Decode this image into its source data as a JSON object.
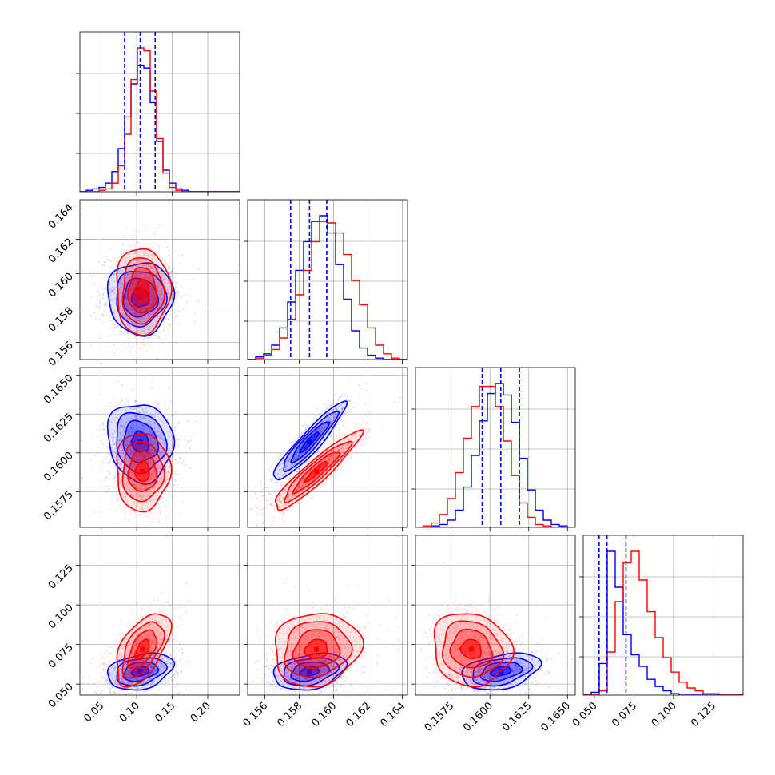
{
  "chart_data": {
    "type": "corner",
    "title": "",
    "colors": {
      "series_a": "#0000ff",
      "series_b": "#ff0000"
    },
    "grid": true,
    "legend": "none",
    "params": [
      {
        "ticks": [
          0.05,
          0.1,
          0.15,
          0.2
        ],
        "tick_labels": [
          "0.05",
          "0.10",
          "0.15",
          "0.20"
        ],
        "range": [
          0.02,
          0.245
        ]
      },
      {
        "ticks": [
          0.156,
          0.158,
          0.16,
          0.162,
          0.164
        ],
        "tick_labels": [
          "0.156",
          "0.158",
          "0.160",
          "0.162",
          "0.164"
        ],
        "range": [
          0.155,
          0.1643
        ]
      },
      {
        "ticks": [
          0.1575,
          0.16,
          0.1625,
          0.165
        ],
        "tick_labels": [
          "0.1575",
          "0.1600",
          "0.1625",
          "0.1650"
        ],
        "range": [
          0.1552,
          0.1655
        ]
      },
      {
        "ticks": [
          0.05,
          0.075,
          0.1,
          0.125
        ],
        "tick_labels": [
          "0.050",
          "0.075",
          "0.100",
          "0.125"
        ],
        "range": [
          0.043,
          0.144
        ]
      }
    ],
    "series": [
      {
        "color_key": "series_a",
        "means": [
          0.105,
          0.1586,
          0.1607,
          0.058
        ],
        "sds": [
          0.022,
          0.001,
          0.0012,
          0.0055
        ],
        "quantiles": [
          [
            0.083,
            0.105,
            0.126
          ],
          [
            0.1575,
            0.1586,
            0.1596
          ],
          [
            0.1595,
            0.1607,
            0.1619
          ],
          [
            0.053,
            0.058,
            0.07
          ]
        ],
        "corr": {
          "0-1": 0.0,
          "0-2": -0.1,
          "1-2": 0.93,
          "0-3": 0.3,
          "1-3": 0.3,
          "2-3": 0.35
        }
      },
      {
        "color_key": "series_b",
        "means": [
          0.108,
          0.159,
          0.1588,
          0.072
        ],
        "sds": [
          0.018,
          0.0012,
          0.0012,
          0.011
        ],
        "quantiles": null,
        "corr": {
          "0-1": 0.0,
          "0-2": 0.0,
          "1-2": 0.93,
          "0-3": 0.55,
          "1-3": 0.1,
          "2-3": -0.1
        }
      }
    ],
    "hist": {
      "0": {
        "edges": [
          0.02,
          0.245
        ],
        "series_a": [
          0,
          1,
          2,
          3,
          6,
          14,
          30,
          52,
          75,
          88,
          86,
          62,
          35,
          15,
          6,
          2,
          1,
          0,
          0,
          0,
          0,
          0,
          0,
          0,
          0
        ],
        "series_b": [
          0,
          0,
          0,
          1,
          2,
          6,
          18,
          40,
          78,
          100,
          98,
          70,
          37,
          13,
          3,
          1,
          0,
          0,
          0,
          0,
          0,
          0,
          0,
          0,
          0
        ]
      },
      "1": {
        "edges": [
          0.155,
          0.1643
        ],
        "series_a": [
          0,
          2,
          4,
          10,
          22,
          40,
          62,
          82,
          96,
          100,
          88,
          66,
          42,
          20,
          8,
          3,
          1,
          0,
          0,
          0
        ],
        "series_b": [
          0,
          1,
          3,
          7,
          15,
          28,
          45,
          62,
          82,
          96,
          95,
          88,
          73,
          55,
          38,
          22,
          10,
          4,
          1,
          0
        ]
      },
      "2": {
        "edges": [
          0.1552,
          0.1655
        ],
        "series_a": [
          0,
          0,
          1,
          2,
          5,
          12,
          28,
          50,
          74,
          93,
          100,
          92,
          73,
          48,
          26,
          12,
          5,
          2,
          1,
          0
        ],
        "series_b": [
          0,
          1,
          3,
          9,
          20,
          38,
          62,
          84,
          98,
          98,
          84,
          60,
          36,
          17,
          7,
          2,
          1,
          0,
          0,
          0
        ]
      },
      "3": {
        "edges": [
          0.043,
          0.144
        ],
        "series_a": [
          0,
          2,
          22,
          100,
          75,
          42,
          28,
          20,
          11,
          6,
          3,
          1,
          0,
          0,
          0,
          0,
          0,
          0,
          0,
          0
        ],
        "series_b": [
          0,
          0,
          3,
          30,
          65,
          92,
          100,
          80,
          58,
          40,
          26,
          16,
          9,
          5,
          3,
          1,
          1,
          0,
          0,
          0
        ]
      }
    }
  }
}
